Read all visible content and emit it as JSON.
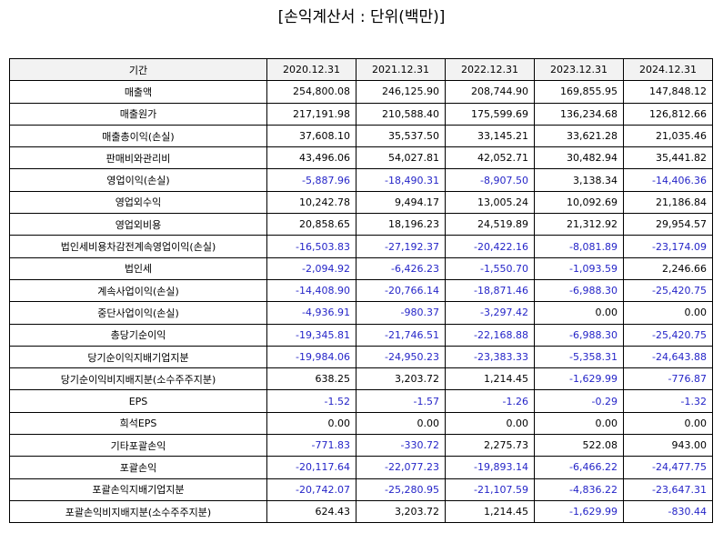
{
  "title": "[손익계산서 : 단위(백만)]",
  "header": {
    "label": "기간",
    "years": [
      "2020.12.31",
      "2021.12.31",
      "2022.12.31",
      "2023.12.31",
      "2024.12.31"
    ]
  },
  "colors": {
    "negative": "#2525c8",
    "header_bg": "#f2f2f2",
    "border": "#000000"
  },
  "rows": [
    {
      "label": "매출액",
      "values": [
        "254,800.08",
        "246,125.90",
        "208,744.90",
        "169,855.95",
        "147,848.12"
      ]
    },
    {
      "label": "매출원가",
      "values": [
        "217,191.98",
        "210,588.40",
        "175,599.69",
        "136,234.68",
        "126,812.66"
      ]
    },
    {
      "label": "매출총이익(손실)",
      "values": [
        "37,608.10",
        "35,537.50",
        "33,145.21",
        "33,621.28",
        "21,035.46"
      ]
    },
    {
      "label": "판매비와관리비",
      "values": [
        "43,496.06",
        "54,027.81",
        "42,052.71",
        "30,482.94",
        "35,441.82"
      ]
    },
    {
      "label": "영업이익(손실)",
      "values": [
        "-5,887.96",
        "-18,490.31",
        "-8,907.50",
        "3,138.34",
        "-14,406.36"
      ]
    },
    {
      "label": "영업외수익",
      "values": [
        "10,242.78",
        "9,494.17",
        "13,005.24",
        "10,092.69",
        "21,186.84"
      ]
    },
    {
      "label": "영업외비용",
      "values": [
        "20,858.65",
        "18,196.23",
        "24,519.89",
        "21,312.92",
        "29,954.57"
      ]
    },
    {
      "label": "법인세비용차감전계속영업이익(손실)",
      "values": [
        "-16,503.83",
        "-27,192.37",
        "-20,422.16",
        "-8,081.89",
        "-23,174.09"
      ]
    },
    {
      "label": "법인세",
      "values": [
        "-2,094.92",
        "-6,426.23",
        "-1,550.70",
        "-1,093.59",
        "2,246.66"
      ]
    },
    {
      "label": "계속사업이익(손실)",
      "values": [
        "-14,408.90",
        "-20,766.14",
        "-18,871.46",
        "-6,988.30",
        "-25,420.75"
      ]
    },
    {
      "label": "중단사업이익(손실)",
      "values": [
        "-4,936.91",
        "-980.37",
        "-3,297.42",
        "0.00",
        "0.00"
      ]
    },
    {
      "label": "총당기순이익",
      "values": [
        "-19,345.81",
        "-21,746.51",
        "-22,168.88",
        "-6,988.30",
        "-25,420.75"
      ]
    },
    {
      "label": "당기순이익지배기업지분",
      "values": [
        "-19,984.06",
        "-24,950.23",
        "-23,383.33",
        "-5,358.31",
        "-24,643.88"
      ]
    },
    {
      "label": "당기순이익비지배지분(소수주주지분)",
      "values": [
        "638.25",
        "3,203.72",
        "1,214.45",
        "-1,629.99",
        "-776.87"
      ]
    },
    {
      "label": "EPS",
      "values": [
        "-1.52",
        "-1.57",
        "-1.26",
        "-0.29",
        "-1.32"
      ]
    },
    {
      "label": "희석EPS",
      "values": [
        "0.00",
        "0.00",
        "0.00",
        "0.00",
        "0.00"
      ]
    },
    {
      "label": "기타포괄손익",
      "values": [
        "-771.83",
        "-330.72",
        "2,275.73",
        "522.08",
        "943.00"
      ]
    },
    {
      "label": "포괄손익",
      "values": [
        "-20,117.64",
        "-22,077.23",
        "-19,893.14",
        "-6,466.22",
        "-24,477.75"
      ]
    },
    {
      "label": "포괄손익지배기업지분",
      "values": [
        "-20,742.07",
        "-25,280.95",
        "-21,107.59",
        "-4,836.22",
        "-23,647.31"
      ]
    },
    {
      "label": "포괄손익비지배지분(소수주주지분)",
      "values": [
        "624.43",
        "3,203.72",
        "1,214.45",
        "-1,629.99",
        "-830.44"
      ]
    }
  ]
}
